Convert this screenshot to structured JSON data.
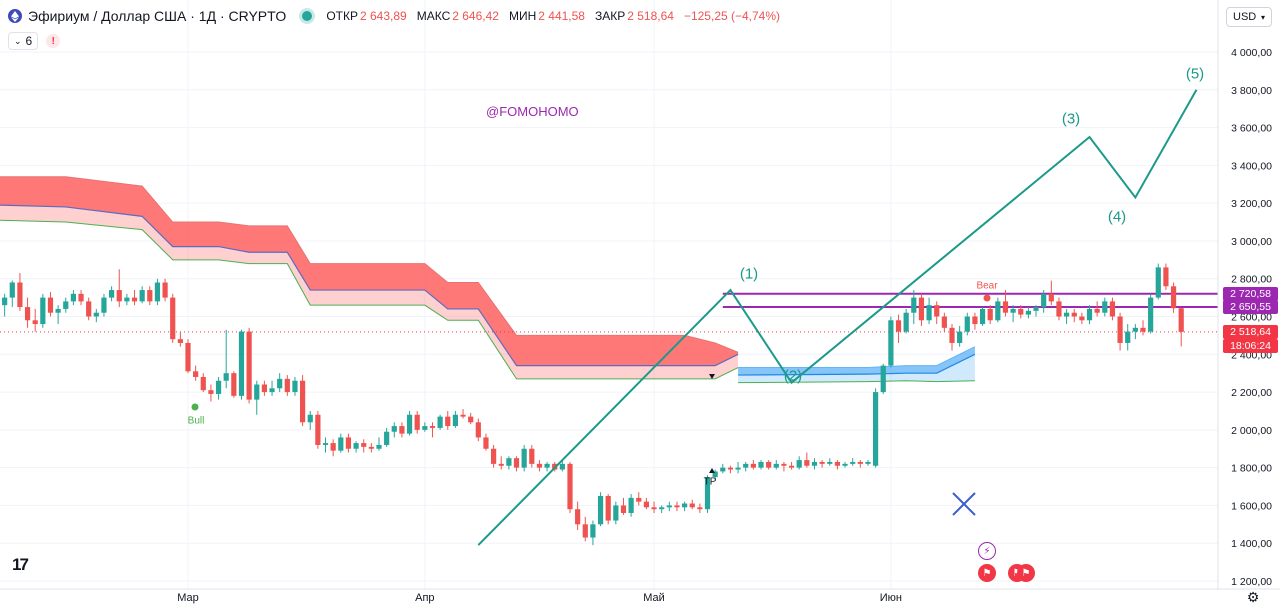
{
  "header": {
    "title": "Эфириум / Доллар США · 1Д · CRYPTO",
    "ohlc": [
      {
        "key": "ОТКР",
        "value": "2 643,89"
      },
      {
        "key": "МАКС",
        "value": "2 646,42"
      },
      {
        "key": "МИН",
        "value": "2 441,58"
      },
      {
        "key": "ЗАКР",
        "value": "2 518,64"
      }
    ],
    "change": "−125,25 (−4,74%)"
  },
  "indicators": {
    "count": "6",
    "warning": "!"
  },
  "currency": "USD",
  "watermark": "@FOMOHOMO",
  "wave_labels": [
    "(1)",
    "(2)",
    "(3)",
    "(4)",
    "(5)"
  ],
  "signal_labels": {
    "bull": "Bull",
    "bear": "Bear",
    "tp": "TP"
  },
  "price_tags": [
    {
      "text": "2 720,58",
      "color": "#9c27b0"
    },
    {
      "text": "2 650,55",
      "color": "#9c27b0"
    },
    {
      "text": "2 518,64",
      "color": "#f23645"
    },
    {
      "text": "18:06:24",
      "color": "#f23645"
    }
  ],
  "tv_logo": "17",
  "colors": {
    "up": "#26a69a",
    "down": "#ef5350",
    "wave": "#1b9a8a",
    "resistance": "#9c27b0",
    "cloud_red": "#ff5252",
    "cloud_blue": "#2196f3",
    "cross": "#3a5fcd"
  },
  "icons": [
    "chevron-down-icon",
    "warning-icon",
    "gear-icon",
    "lightning-icon",
    "us-flag-icon",
    "cross-icon"
  ],
  "chart_data": {
    "type": "candlestick",
    "symbol": "ETHUSD",
    "interval": "1D",
    "y_axis": {
      "ticks": [
        "1 200,00",
        "1 400,00",
        "1 600,00",
        "1 800,00",
        "2 000,00",
        "2 200,00",
        "2 400,00",
        "2 600,00",
        "2 800,00",
        "3 000,00",
        "3 200,00",
        "3 400,00",
        "3 600,00",
        "3 800,00",
        "4 000,00"
      ],
      "tick_values": [
        1200,
        1400,
        1600,
        1800,
        2000,
        2200,
        2400,
        2600,
        2800,
        3000,
        3200,
        3400,
        3600,
        3800,
        4000
      ],
      "range": [
        1200,
        4000
      ]
    },
    "x_axis": {
      "labels": [
        "Мар",
        "Апр",
        "Май",
        "Июн"
      ],
      "label_dates": [
        "2025-03-01",
        "2025-04-01",
        "2025-05-01",
        "2025-06-01"
      ],
      "range": [
        "2025-02-03",
        "2025-07-08"
      ]
    },
    "candles_start": "2025-02-04",
    "candles": [
      [
        2700,
        2720,
        2620,
        2660
      ],
      [
        2660,
        2720,
        2600,
        2700
      ],
      [
        2700,
        2790,
        2650,
        2780
      ],
      [
        2780,
        2830,
        2630,
        2650
      ],
      [
        2650,
        2700,
        2540,
        2580
      ],
      [
        2580,
        2640,
        2520,
        2560
      ],
      [
        2560,
        2720,
        2540,
        2700
      ],
      [
        2700,
        2730,
        2600,
        2620
      ],
      [
        2620,
        2660,
        2560,
        2640
      ],
      [
        2640,
        2700,
        2620,
        2680
      ],
      [
        2680,
        2740,
        2660,
        2720
      ],
      [
        2720,
        2740,
        2660,
        2680
      ],
      [
        2680,
        2700,
        2580,
        2600
      ],
      [
        2600,
        2640,
        2570,
        2620
      ],
      [
        2620,
        2720,
        2600,
        2700
      ],
      [
        2700,
        2760,
        2680,
        2740
      ],
      [
        2740,
        2850,
        2650,
        2680
      ],
      [
        2680,
        2720,
        2660,
        2700
      ],
      [
        2700,
        2740,
        2660,
        2680
      ],
      [
        2680,
        2760,
        2670,
        2740
      ],
      [
        2740,
        2760,
        2660,
        2680
      ],
      [
        2680,
        2800,
        2660,
        2780
      ],
      [
        2780,
        2800,
        2680,
        2700
      ],
      [
        2700,
        2720,
        2460,
        2480
      ],
      [
        2480,
        2520,
        2440,
        2460
      ],
      [
        2460,
        2480,
        2300,
        2310
      ],
      [
        2310,
        2340,
        2260,
        2280
      ],
      [
        2280,
        2300,
        2200,
        2210
      ],
      [
        2210,
        2240,
        2150,
        2190
      ],
      [
        2190,
        2280,
        2160,
        2260
      ],
      [
        2260,
        2530,
        2220,
        2300
      ],
      [
        2300,
        2310,
        2170,
        2180
      ],
      [
        2180,
        2530,
        2160,
        2520
      ],
      [
        2520,
        2540,
        2140,
        2160
      ],
      [
        2160,
        2260,
        2080,
        2240
      ],
      [
        2240,
        2260,
        2180,
        2200
      ],
      [
        2200,
        2260,
        2180,
        2220
      ],
      [
        2220,
        2300,
        2200,
        2270
      ],
      [
        2270,
        2290,
        2180,
        2200
      ],
      [
        2200,
        2280,
        2180,
        2260
      ],
      [
        2260,
        2290,
        2020,
        2040
      ],
      [
        2040,
        2100,
        2000,
        2080
      ],
      [
        2080,
        2100,
        1900,
        1920
      ],
      [
        1920,
        1960,
        1880,
        1930
      ],
      [
        1930,
        1950,
        1860,
        1890
      ],
      [
        1890,
        1980,
        1880,
        1960
      ],
      [
        1960,
        1980,
        1880,
        1900
      ],
      [
        1900,
        1940,
        1880,
        1930
      ],
      [
        1930,
        1950,
        1880,
        1910
      ],
      [
        1910,
        1930,
        1880,
        1900
      ],
      [
        1900,
        1960,
        1890,
        1920
      ],
      [
        1920,
        2010,
        1910,
        1990
      ],
      [
        1990,
        2040,
        1960,
        2020
      ],
      [
        2020,
        2040,
        1960,
        1980
      ],
      [
        1980,
        2100,
        1970,
        2080
      ],
      [
        2080,
        2100,
        1980,
        2000
      ],
      [
        2000,
        2040,
        1990,
        2020
      ],
      [
        2020,
        2040,
        1960,
        2010
      ],
      [
        2010,
        2080,
        2000,
        2070
      ],
      [
        2070,
        2100,
        2000,
        2020
      ],
      [
        2020,
        2100,
        2010,
        2080
      ],
      [
        2080,
        2110,
        2060,
        2070
      ],
      [
        2070,
        2090,
        2030,
        2040
      ],
      [
        2040,
        2060,
        1940,
        1960
      ],
      [
        1960,
        1980,
        1890,
        1900
      ],
      [
        1900,
        1920,
        1800,
        1820
      ],
      [
        1820,
        1860,
        1790,
        1810
      ],
      [
        1810,
        1860,
        1790,
        1850
      ],
      [
        1850,
        1860,
        1780,
        1800
      ],
      [
        1800,
        1920,
        1780,
        1900
      ],
      [
        1900,
        1920,
        1800,
        1820
      ],
      [
        1820,
        1840,
        1780,
        1800
      ],
      [
        1800,
        1830,
        1780,
        1820
      ],
      [
        1820,
        1830,
        1780,
        1790
      ],
      [
        1790,
        1840,
        1780,
        1820
      ],
      [
        1820,
        1830,
        1560,
        1580
      ],
      [
        1580,
        1620,
        1470,
        1500
      ],
      [
        1500,
        1540,
        1410,
        1430
      ],
      [
        1430,
        1520,
        1390,
        1500
      ],
      [
        1500,
        1670,
        1490,
        1650
      ],
      [
        1650,
        1660,
        1500,
        1520
      ],
      [
        1520,
        1620,
        1500,
        1600
      ],
      [
        1600,
        1640,
        1550,
        1560
      ],
      [
        1560,
        1660,
        1540,
        1640
      ],
      [
        1640,
        1670,
        1600,
        1620
      ],
      [
        1620,
        1640,
        1580,
        1590
      ],
      [
        1590,
        1620,
        1560,
        1580
      ],
      [
        1580,
        1600,
        1560,
        1590
      ],
      [
        1590,
        1620,
        1570,
        1600
      ],
      [
        1600,
        1620,
        1570,
        1590
      ],
      [
        1590,
        1620,
        1570,
        1610
      ],
      [
        1610,
        1630,
        1580,
        1590
      ],
      [
        1590,
        1610,
        1560,
        1580
      ],
      [
        1580,
        1760,
        1560,
        1750
      ],
      [
        1750,
        1790,
        1730,
        1780
      ],
      [
        1780,
        1820,
        1770,
        1800
      ],
      [
        1800,
        1810,
        1770,
        1790
      ],
      [
        1790,
        1830,
        1770,
        1800
      ],
      [
        1800,
        1830,
        1780,
        1820
      ],
      [
        1820,
        1840,
        1790,
        1800
      ],
      [
        1800,
        1840,
        1790,
        1830
      ],
      [
        1830,
        1840,
        1790,
        1800
      ],
      [
        1800,
        1840,
        1790,
        1820
      ],
      [
        1820,
        1830,
        1780,
        1810
      ],
      [
        1810,
        1830,
        1790,
        1800
      ],
      [
        1800,
        1860,
        1790,
        1840
      ],
      [
        1840,
        1880,
        1800,
        1810
      ],
      [
        1810,
        1850,
        1790,
        1830
      ],
      [
        1830,
        1840,
        1800,
        1820
      ],
      [
        1820,
        1850,
        1810,
        1830
      ],
      [
        1830,
        1840,
        1790,
        1810
      ],
      [
        1810,
        1830,
        1800,
        1820
      ],
      [
        1820,
        1850,
        1810,
        1830
      ],
      [
        1830,
        1840,
        1800,
        1820
      ],
      [
        1820,
        1840,
        1810,
        1830
      ],
      [
        1810,
        2220,
        1800,
        2200
      ],
      [
        2200,
        2350,
        2190,
        2340
      ],
      [
        2340,
        2600,
        2330,
        2580
      ],
      [
        2580,
        2610,
        2460,
        2520
      ],
      [
        2520,
        2640,
        2510,
        2620
      ],
      [
        2620,
        2740,
        2560,
        2700
      ],
      [
        2700,
        2720,
        2550,
        2580
      ],
      [
        2580,
        2700,
        2560,
        2660
      ],
      [
        2660,
        2680,
        2560,
        2600
      ],
      [
        2600,
        2620,
        2520,
        2540
      ],
      [
        2540,
        2560,
        2420,
        2460
      ],
      [
        2460,
        2550,
        2440,
        2520
      ],
      [
        2520,
        2620,
        2500,
        2600
      ],
      [
        2600,
        2620,
        2530,
        2560
      ],
      [
        2560,
        2650,
        2550,
        2640
      ],
      [
        2640,
        2660,
        2560,
        2580
      ],
      [
        2580,
        2700,
        2570,
        2680
      ],
      [
        2680,
        2740,
        2600,
        2620
      ],
      [
        2620,
        2660,
        2570,
        2640
      ],
      [
        2640,
        2660,
        2590,
        2610
      ],
      [
        2610,
        2650,
        2590,
        2630
      ],
      [
        2630,
        2660,
        2600,
        2650
      ],
      [
        2650,
        2740,
        2620,
        2720
      ],
      [
        2720,
        2790,
        2660,
        2680
      ],
      [
        2680,
        2700,
        2580,
        2600
      ],
      [
        2600,
        2640,
        2560,
        2620
      ],
      [
        2620,
        2640,
        2570,
        2600
      ],
      [
        2600,
        2620,
        2560,
        2580
      ],
      [
        2580,
        2660,
        2560,
        2640
      ],
      [
        2640,
        2680,
        2600,
        2620
      ],
      [
        2620,
        2700,
        2600,
        2680
      ],
      [
        2680,
        2700,
        2580,
        2600
      ],
      [
        2600,
        2620,
        2420,
        2460
      ],
      [
        2460,
        2560,
        2420,
        2520
      ],
      [
        2520,
        2560,
        2480,
        2540
      ],
      [
        2540,
        2580,
        2500,
        2520
      ],
      [
        2520,
        2720,
        2510,
        2700
      ],
      [
        2700,
        2880,
        2690,
        2860
      ],
      [
        2860,
        2880,
        2740,
        2760
      ],
      [
        2760,
        2780,
        2620,
        2644
      ],
      [
        2643.89,
        2646.42,
        2441.58,
        2518.64
      ]
    ],
    "ichimoku_cloud": {
      "color": "red",
      "points": [
        [
          "2025-02-04",
          3340,
          3190,
          3110
        ],
        [
          "2025-02-13",
          3340,
          3180,
          3100
        ],
        [
          "2025-02-23",
          3290,
          3130,
          3060
        ],
        [
          "2025-02-27",
          3100,
          2970,
          2900
        ],
        [
          "2025-03-05",
          3100,
          2970,
          2900
        ],
        [
          "2025-03-09",
          3080,
          2940,
          2880
        ],
        [
          "2025-03-14",
          3080,
          2940,
          2880
        ],
        [
          "2025-03-17",
          2880,
          2740,
          2660
        ],
        [
          "2025-04-01",
          2880,
          2740,
          2660
        ],
        [
          "2025-04-04",
          2780,
          2640,
          2580
        ],
        [
          "2025-04-08",
          2780,
          2640,
          2580
        ],
        [
          "2025-04-13",
          2500,
          2340,
          2270
        ],
        [
          "2025-05-05",
          2500,
          2340,
          2270
        ],
        [
          "2025-05-09",
          2460,
          2340,
          2270
        ],
        [
          "2025-05-12",
          2410,
          2400,
          2330
        ]
      ]
    },
    "cloud_blue": {
      "color": "blue",
      "points": [
        [
          "2025-05-12",
          2330,
          2290,
          2250
        ],
        [
          "2025-05-29",
          2330,
          2295,
          2255
        ],
        [
          "2025-06-03",
          2340,
          2300,
          2260
        ],
        [
          "2025-06-07",
          2340,
          2300,
          2255
        ],
        [
          "2025-06-12",
          2440,
          2400,
          2260
        ]
      ]
    },
    "resistance_lines": [
      {
        "y": 2720.58,
        "from": "2025-05-10",
        "to": "2025-07-08"
      },
      {
        "y": 2650.55,
        "from": "2025-05-10",
        "to": "2025-07-08"
      }
    ],
    "last_price_line": 2518.64,
    "wave_path": [
      {
        "label": "",
        "x": "2025-04-08",
        "y": 1390
      },
      {
        "label": "(1)",
        "x": "2025-05-11",
        "y": 2740
      },
      {
        "label": "(2)",
        "x": "2025-05-19",
        "y": 2250
      },
      {
        "label": "(3)",
        "x": "2025-06-27",
        "y": 3550
      },
      {
        "label": "(4)",
        "x": "2025-07-03",
        "y": 3230
      },
      {
        "label": "(5)",
        "x": "2025-07-11",
        "y": 3800
      }
    ],
    "trend_line": [
      {
        "x": "2025-04-08",
        "y": 1390
      },
      {
        "x": "2025-05-11",
        "y": 2740
      }
    ],
    "signals": [
      {
        "label": "Bull",
        "x": "2025-02-27",
        "y": 2110
      },
      {
        "label": "Bear",
        "x": "2025-06-15",
        "y": 2660
      },
      {
        "label": "TP",
        "x": "2025-05-08",
        "y": 1770
      }
    ]
  }
}
